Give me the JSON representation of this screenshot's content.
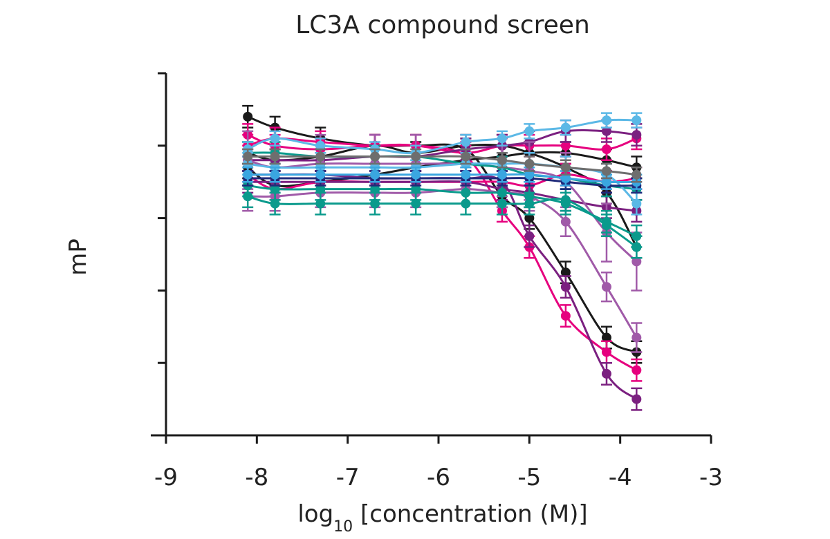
{
  "chart_data": {
    "type": "scatter",
    "title": "LC3A compound screen",
    "xlabel_main": "log",
    "xlabel_sub": "10",
    "xlabel_rest": " [concentration (M)]",
    "ylabel": "mP",
    "xlim": [
      -9,
      -3
    ],
    "ylim": [
      0,
      100
    ],
    "x_ticks": [
      "-9",
      "-8",
      "-7",
      "-6",
      "-5",
      "-4",
      "-3"
    ],
    "y_ticks_unlabeled": 5,
    "grid": false,
    "x_points": [
      -8.1,
      -7.8,
      -7.3,
      -6.7,
      -6.25,
      -5.7,
      -5.3,
      -5.0,
      -4.6,
      -4.15,
      -3.82
    ],
    "series": [
      {
        "color": "#1a1a1a",
        "values": [
          88,
          85,
          82,
          80,
          80,
          79,
          66,
          60,
          45,
          27,
          23
        ],
        "err": 3
      },
      {
        "color": "#1a1a1a",
        "values": [
          78,
          76,
          77,
          80,
          78,
          80,
          80,
          78,
          74,
          67,
          52
        ],
        "err": 3
      },
      {
        "color": "#1a1a1a",
        "values": [
          74,
          69,
          70,
          72,
          74,
          76,
          77,
          78,
          78,
          76,
          74
        ],
        "err": 3
      },
      {
        "color": "#e6007e",
        "values": [
          83,
          80,
          79,
          80,
          80,
          77,
          62,
          52,
          33,
          23,
          18
        ],
        "err": 3
      },
      {
        "color": "#e6007e",
        "values": [
          80,
          82,
          81,
          80,
          80,
          78,
          80,
          80,
          80,
          79,
          82
        ],
        "err": 3
      },
      {
        "color": "#e6007e",
        "values": [
          72,
          68,
          70,
          70,
          70,
          70,
          70,
          69,
          72,
          70,
          71
        ],
        "err": 3
      },
      {
        "color": "#7b2080",
        "values": [
          72,
          72,
          72,
          71,
          71,
          71,
          70,
          55,
          41,
          17,
          10
        ],
        "err": 3
      },
      {
        "color": "#7b2080",
        "values": [
          70,
          70,
          70,
          70,
          70,
          70,
          68,
          67,
          65,
          63,
          62
        ],
        "err": 3
      },
      {
        "color": "#7b2080",
        "values": [
          76,
          76,
          76,
          77,
          77,
          79,
          80,
          81,
          84,
          84,
          83
        ],
        "err": 3
      },
      {
        "color": "#a05aa8",
        "values": [
          66,
          66,
          67,
          67,
          67,
          68,
          67,
          66,
          59,
          41,
          27
        ],
        "err": 4
      },
      {
        "color": "#a05aa8",
        "values": [
          76,
          74,
          75,
          75,
          75,
          75,
          74,
          73,
          70,
          56,
          48
        ],
        "err": 8
      },
      {
        "color": "#0a9a8c",
        "values": [
          66,
          64,
          64,
          64,
          64,
          64,
          64,
          64,
          65,
          58,
          52
        ],
        "err": 3
      },
      {
        "color": "#0a9a8c",
        "values": [
          69,
          68,
          68,
          68,
          68,
          67,
          67,
          66,
          64,
          59,
          55
        ],
        "err": 3
      },
      {
        "color": "#0a9a8c",
        "values": [
          78,
          78,
          77,
          77,
          77,
          75,
          74,
          72,
          71,
          69,
          68
        ],
        "err": 3
      },
      {
        "color": "#5bb8e6",
        "values": [
          79,
          82,
          80,
          79,
          78,
          81,
          82,
          84,
          85,
          87,
          87
        ],
        "err": 2
      },
      {
        "color": "#5bb8e6",
        "values": [
          75,
          74,
          74,
          74,
          74,
          75,
          75,
          75,
          74,
          72,
          64
        ],
        "err": 3
      },
      {
        "color": "#1f2a7a",
        "values": [
          71,
          71,
          71,
          71,
          71,
          71,
          71,
          71,
          70,
          69,
          69
        ],
        "err": 2
      },
      {
        "color": "#3aa6e0",
        "values": [
          72,
          72,
          72,
          72,
          72,
          72,
          72,
          72,
          71,
          70,
          70
        ],
        "err": 2
      },
      {
        "color": "#6e6e6e",
        "values": [
          77,
          77,
          77,
          77,
          77,
          77,
          76,
          75,
          74,
          73,
          72
        ],
        "err": 2
      }
    ]
  }
}
